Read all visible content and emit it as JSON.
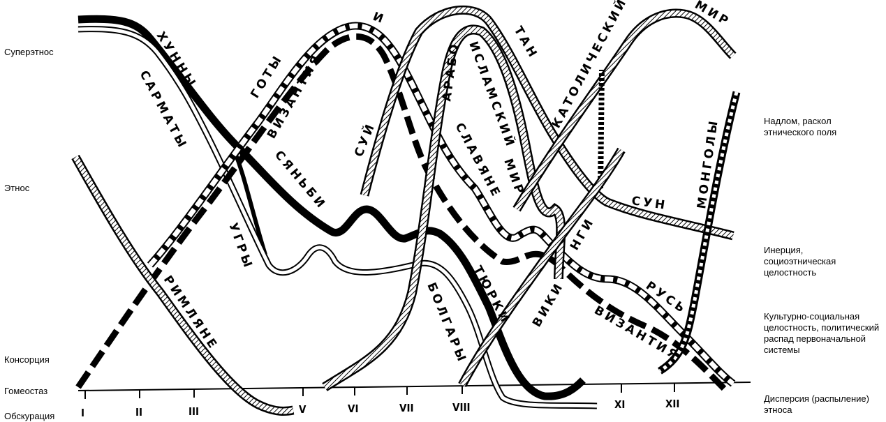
{
  "left_axis": [
    "Суперэтнос",
    "Этнос",
    "Консорция",
    "Гомеостаз",
    "Обскурация"
  ],
  "right_axis": [
    "Надлом, раскол этнического поля",
    "Инерция, социоэтническая целостность",
    "Культурно-социальная целостность, политический распад первоначальной системы",
    "Дисперсия (распыление) этноса"
  ],
  "centuries": [
    "I",
    "II",
    "III",
    "V",
    "VI",
    "VII",
    "VIII",
    "XI",
    "XII"
  ],
  "curve_labels": [
    "ХУННЫ",
    "САРМАТЫ",
    "ГОТЫ",
    "ВИЗАНТИЯ",
    "И",
    "СЯНЬБИ",
    "УГРЫ",
    "РИМЛЯНЕ",
    "СУЙ",
    "АРАБО",
    "ИСЛАМСКИЙ",
    "МИР",
    "ТАН",
    "СЛАВЯНЕ",
    "ТЮРКИ",
    "БОЛГАРЫ",
    "ВИКИ",
    "НГИ",
    "КАТОЛИЧЕСКИЙ",
    "МИР",
    "СУН",
    "МОНГОЛЫ",
    "РУСЬ",
    "ВИЗАНТИЯ"
  ]
}
